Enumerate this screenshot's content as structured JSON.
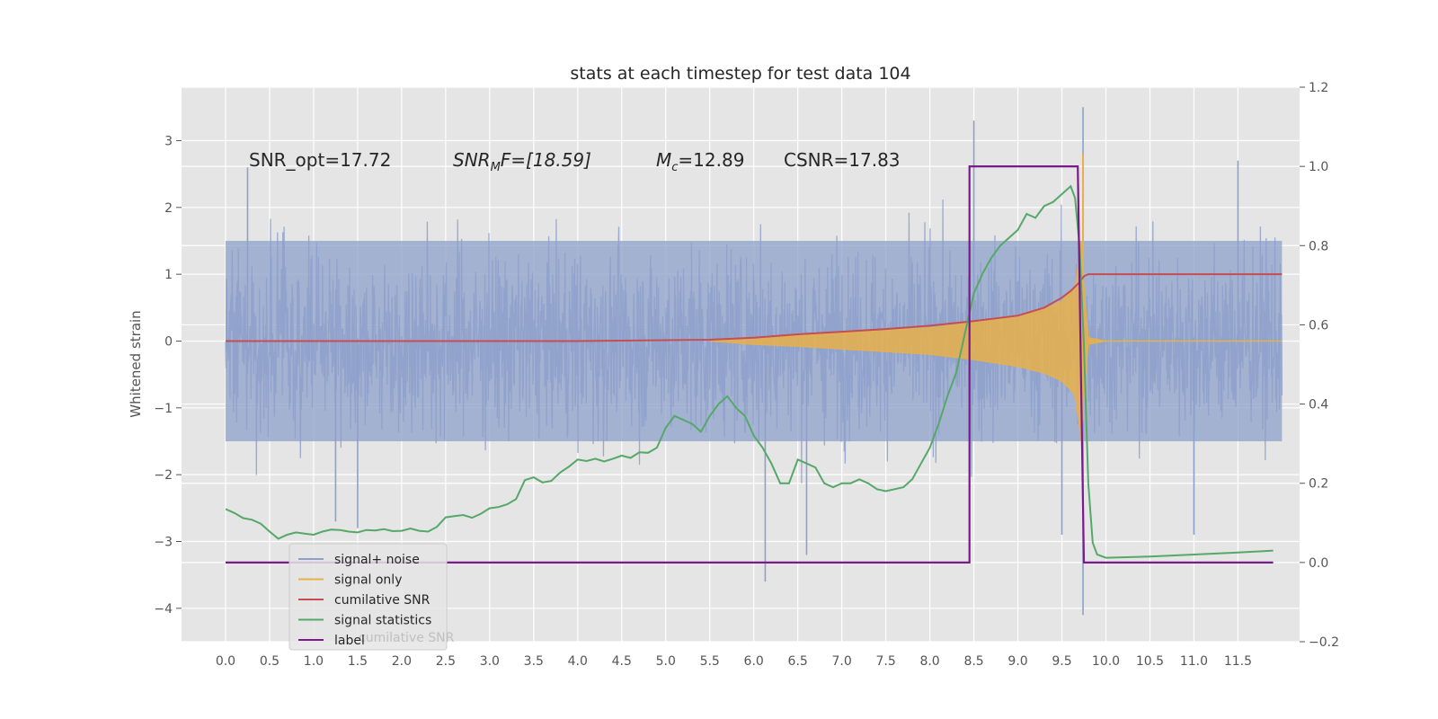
{
  "chart_data": {
    "type": "line",
    "title": "stats at each timestep for test data 104",
    "ylabel": "Whitened strain",
    "xlim": [
      -0.5,
      12.2
    ],
    "ylim": [
      -4.5,
      3.8
    ],
    "y2lim": [
      -0.2,
      1.2
    ],
    "x_ticks": [
      "0.0",
      "0.5",
      "1.0",
      "1.5",
      "2.0",
      "2.5",
      "3.0",
      "3.5",
      "4.0",
      "4.5",
      "5.0",
      "5.5",
      "6.0",
      "6.5",
      "7.0",
      "7.5",
      "8.0",
      "8.5",
      "9.0",
      "9.5",
      "10.0",
      "10.5",
      "11.0",
      "11.5"
    ],
    "y_ticks": [
      "3",
      "2",
      "1",
      "0",
      "−1",
      "−2",
      "−3",
      "−4"
    ],
    "y2_ticks": [
      "1.2",
      "1.0",
      "0.8",
      "0.6",
      "0.4",
      "0.2",
      "0.0",
      "−0.2"
    ],
    "annotations": {
      "snr_opt": "SNR_opt=17.72",
      "snr_mf_main": "SNR",
      "snr_mf_sub": "M",
      "snr_mf_rest": "F=[18.59]",
      "mc_main": "M",
      "mc_sub": "c",
      "mc_rest": "=12.89",
      "csnr": "CSNR=17.83"
    },
    "colors": {
      "signal_noise": "#8da0cb",
      "signal_only": "#e8b04a",
      "cumulative_snr": "#c44e52",
      "signal_statistics": "#55a868",
      "label": "#7b1a8a",
      "background": "#e5e5e5"
    },
    "series": [
      {
        "name": "signal+ noise",
        "axis": "left",
        "noise_band": 1.5,
        "outlier_spikes": [
          [
            0.25,
            2.6
          ],
          [
            1.25,
            -2.7
          ],
          [
            1.5,
            -2.8
          ],
          [
            6.0,
            0.9
          ],
          [
            6.13,
            -3.6
          ],
          [
            6.6,
            -3.2
          ],
          [
            8.5,
            3.3
          ],
          [
            9.5,
            -2.9
          ],
          [
            9.74,
            3.5
          ],
          [
            9.74,
            -4.1
          ],
          [
            11.5,
            2.7
          ],
          [
            11.0,
            -2.9
          ]
        ]
      },
      {
        "name": "signal only",
        "axis": "left",
        "x": [
          5.5,
          6.0,
          6.5,
          7.0,
          7.5,
          8.0,
          8.5,
          9.0,
          9.3,
          9.5,
          9.65,
          9.72,
          9.75,
          9.8,
          10.0,
          12.0
        ],
        "envelope": [
          0.0,
          0.05,
          0.08,
          0.12,
          0.16,
          0.2,
          0.28,
          0.38,
          0.48,
          0.6,
          0.8,
          1.5,
          0.8,
          0.05,
          0.0,
          0.0
        ]
      },
      {
        "name": "cumilative SNR",
        "axis": "left",
        "x": [
          0.0,
          2.0,
          4.0,
          5.5,
          6.0,
          6.5,
          7.0,
          7.5,
          8.0,
          8.5,
          9.0,
          9.3,
          9.5,
          9.6,
          9.7,
          9.75,
          9.8,
          10.0,
          12.0
        ],
        "values": [
          0.0,
          0.0,
          0.0,
          0.02,
          0.05,
          0.1,
          0.14,
          0.18,
          0.23,
          0.3,
          0.38,
          0.5,
          0.65,
          0.75,
          0.88,
          0.97,
          1.0,
          1.0,
          1.0
        ]
      },
      {
        "name": "signal statistics",
        "axis": "right",
        "x": [
          0.0,
          0.1,
          0.2,
          0.3,
          0.4,
          0.5,
          0.6,
          0.7,
          0.8,
          0.9,
          1.0,
          1.1,
          1.2,
          1.3,
          1.4,
          1.5,
          1.6,
          1.7,
          1.8,
          1.9,
          2.0,
          2.1,
          2.2,
          2.3,
          2.4,
          2.5,
          2.6,
          2.7,
          2.8,
          2.9,
          3.0,
          3.1,
          3.2,
          3.3,
          3.4,
          3.5,
          3.6,
          3.7,
          3.8,
          3.9,
          4.0,
          4.1,
          4.2,
          4.3,
          4.4,
          4.5,
          4.6,
          4.7,
          4.8,
          4.9,
          5.0,
          5.1,
          5.2,
          5.3,
          5.4,
          5.5,
          5.6,
          5.7,
          5.8,
          5.9,
          6.0,
          6.1,
          6.2,
          6.3,
          6.4,
          6.5,
          6.6,
          6.7,
          6.8,
          6.9,
          7.0,
          7.1,
          7.2,
          7.3,
          7.4,
          7.5,
          7.6,
          7.7,
          7.8,
          7.9,
          8.0,
          8.1,
          8.2,
          8.3,
          8.4,
          8.5,
          8.6,
          8.7,
          8.8,
          8.9,
          9.0,
          9.1,
          9.2,
          9.3,
          9.4,
          9.5,
          9.6,
          9.65,
          9.7,
          9.75,
          9.8,
          9.85,
          9.9,
          10.0,
          10.5,
          11.0,
          11.5,
          11.9
        ],
        "values": [
          0.135,
          0.125,
          0.112,
          0.108,
          0.098,
          0.078,
          0.06,
          0.07,
          0.076,
          0.073,
          0.07,
          0.078,
          0.083,
          0.082,
          0.078,
          0.076,
          0.082,
          0.081,
          0.084,
          0.079,
          0.08,
          0.086,
          0.08,
          0.078,
          0.09,
          0.114,
          0.117,
          0.12,
          0.113,
          0.123,
          0.137,
          0.14,
          0.147,
          0.16,
          0.208,
          0.215,
          0.202,
          0.206,
          0.227,
          0.242,
          0.26,
          0.256,
          0.262,
          0.255,
          0.262,
          0.27,
          0.264,
          0.278,
          0.277,
          0.29,
          0.34,
          0.37,
          0.36,
          0.35,
          0.33,
          0.37,
          0.4,
          0.42,
          0.39,
          0.37,
          0.32,
          0.29,
          0.25,
          0.2,
          0.2,
          0.26,
          0.25,
          0.24,
          0.2,
          0.19,
          0.2,
          0.2,
          0.21,
          0.2,
          0.185,
          0.18,
          0.185,
          0.19,
          0.21,
          0.25,
          0.29,
          0.35,
          0.42,
          0.48,
          0.58,
          0.68,
          0.73,
          0.77,
          0.8,
          0.82,
          0.84,
          0.88,
          0.87,
          0.9,
          0.91,
          0.93,
          0.95,
          0.92,
          0.8,
          0.55,
          0.2,
          0.05,
          0.02,
          0.012,
          0.015,
          0.02,
          0.025,
          0.03
        ],
        "note_marker": ""
      },
      {
        "name": "label",
        "axis": "right",
        "x": [
          0.0,
          8.45,
          8.45,
          9.68,
          9.75,
          11.9
        ],
        "values": [
          0.0,
          0.0,
          1.0,
          1.0,
          0.0,
          0.0
        ]
      }
    ],
    "legend": {
      "location": "lower-left",
      "items": [
        "signal+ noise",
        "signal only",
        "cumilative SNR",
        "signal statistics",
        "label"
      ],
      "ghost_text": "cumilative SNR"
    }
  }
}
